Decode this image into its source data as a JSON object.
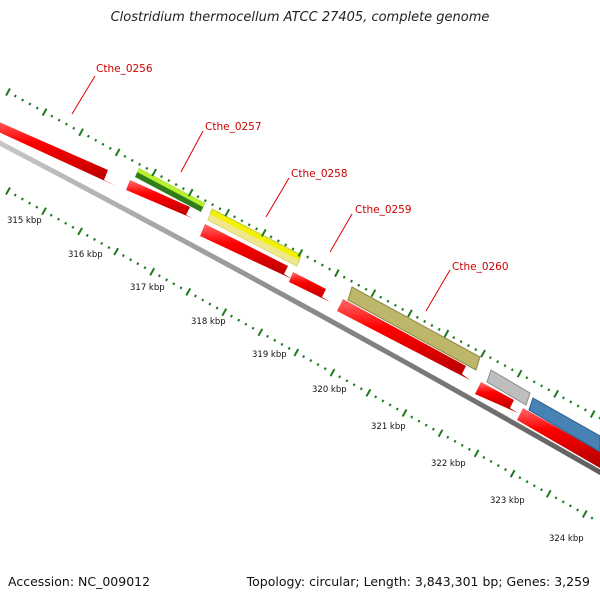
{
  "title": "Clostridium thermocellum ATCC 27405, complete genome",
  "footer": {
    "accession": "Accession: NC_009012",
    "summary": "Topology: circular; Length: 3,843,301 bp; Genes: 3,259"
  },
  "colors": {
    "cds_red": "#ff0000",
    "gene_green": "#6ab820",
    "gene_yellow": "#f2f200",
    "gene_khaki": "#bdb76b",
    "gene_gray": "#bebebe",
    "gene_blue": "#4682b4",
    "gc_tick": "#1e7a1e",
    "backbone": "#8c8c8c",
    "label_red": "#cc0000"
  },
  "labels": [
    {
      "text": "Cthe_0256",
      "name": "label-cthe-0256"
    },
    {
      "text": "Cthe_0257",
      "name": "label-cthe-0257"
    },
    {
      "text": "Cthe_0258",
      "name": "label-cthe-0258"
    },
    {
      "text": "Cthe_0259",
      "name": "label-cthe-0259"
    },
    {
      "text": "Cthe_0260",
      "name": "label-cthe-0260"
    }
  ],
  "ruler": [
    "315 kbp",
    "316 kbp",
    "317 kbp",
    "318 kbp",
    "319 kbp",
    "320 kbp",
    "321 kbp",
    "322 kbp",
    "323 kbp",
    "324 kbp"
  ]
}
